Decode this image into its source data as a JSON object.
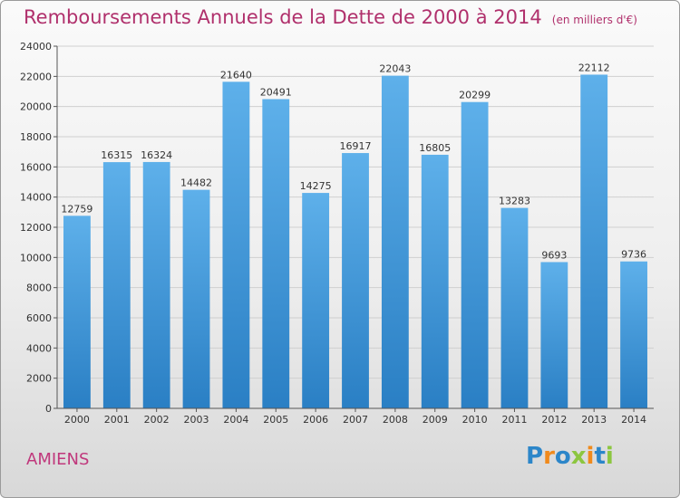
{
  "title": "Remboursements Annuels de la Dette de 2000 à 2014",
  "subtitle": "(en milliers d'€)",
  "location": "AMIENS",
  "logo": {
    "text": "Proxiti",
    "letters": [
      {
        "ch": "P",
        "color": "#2c86c9"
      },
      {
        "ch": "r",
        "color": "#f08a1c"
      },
      {
        "ch": "o",
        "color": "#2c86c9"
      },
      {
        "ch": "x",
        "color": "#8cc63f"
      },
      {
        "ch": "i",
        "color": "#f08a1c"
      },
      {
        "ch": "t",
        "color": "#2c86c9"
      },
      {
        "ch": "i",
        "color": "#8cc63f"
      }
    ]
  },
  "colors": {
    "bar_top": "#5eb0ea",
    "bar_bottom": "#2a7fc4",
    "title": "#b0306c",
    "grid": "#cfcfcf"
  },
  "chart_data": {
    "type": "bar",
    "title": "Remboursements Annuels de la Dette de 2000 à 2014",
    "subtitle": "(en milliers d'€)",
    "xlabel": "",
    "ylabel": "",
    "ylim": [
      0,
      24000
    ],
    "yticks": [
      0,
      2000,
      4000,
      6000,
      8000,
      10000,
      12000,
      14000,
      16000,
      18000,
      20000,
      22000,
      24000
    ],
    "grid": true,
    "categories": [
      "2000",
      "2001",
      "2002",
      "2003",
      "2004",
      "2005",
      "2006",
      "2007",
      "2008",
      "2009",
      "2010",
      "2011",
      "2012",
      "2013",
      "2014"
    ],
    "values": [
      12759,
      16315,
      16324,
      14482,
      21640,
      20491,
      14275,
      16917,
      22043,
      16805,
      20299,
      13283,
      9693,
      22112,
      9736
    ]
  }
}
